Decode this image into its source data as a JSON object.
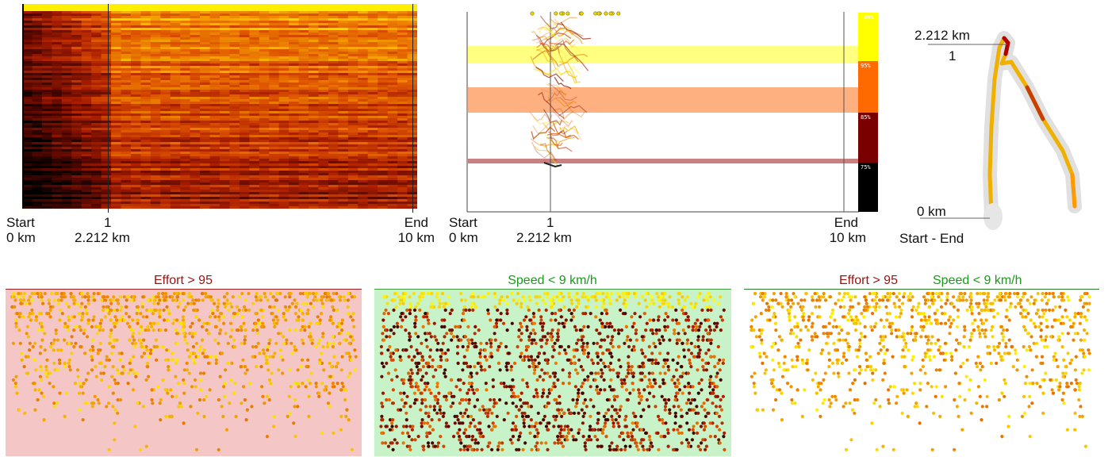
{
  "colors": {
    "black": "#000000",
    "dark_red": "#6a0a00",
    "red": "#b42000",
    "orange": "#f07800",
    "amber": "#f0a000",
    "yellow": "#ffe600",
    "bright_yellow": "#ffff00",
    "effort_bg": "#f4c6c6",
    "speed_bg": "#c8f2c8",
    "band_yellow": "#ffff80",
    "band_orange": "#ffb080",
    "band_rose": "#c88080"
  },
  "heatmap": {
    "axis": {
      "ticks": [
        {
          "name": "Start",
          "km": "0 km"
        },
        {
          "name": "1",
          "km": "2.212 km"
        },
        {
          "name": "End",
          "km": "10 km"
        }
      ],
      "range_km": [
        0,
        10
      ],
      "split_km": 2.212
    }
  },
  "effort_chart": {
    "axis": {
      "ticks": [
        {
          "name": "Start",
          "km": "0 km"
        },
        {
          "name": "1",
          "km": "2.212 km"
        },
        {
          "name": "End",
          "km": "10 km"
        }
      ]
    },
    "zones": [
      {
        "label": "100%",
        "color": "#ffff00"
      },
      {
        "label": "95%",
        "color": "#ff6a00"
      },
      {
        "label": "85%",
        "color": "#7a0000"
      },
      {
        "label": "75%",
        "color": "#000000"
      }
    ]
  },
  "route_map": {
    "split_distance": "2.212 km",
    "split_name": "1",
    "start_distance": "0 km",
    "start_label": "Start - End"
  },
  "filters": {
    "effort_title": "Effort > 95",
    "speed_title": "Speed < 9 km/h",
    "combined_effort_title": "Effort > 95",
    "combined_speed_title": "Speed < 9 km/h"
  }
}
